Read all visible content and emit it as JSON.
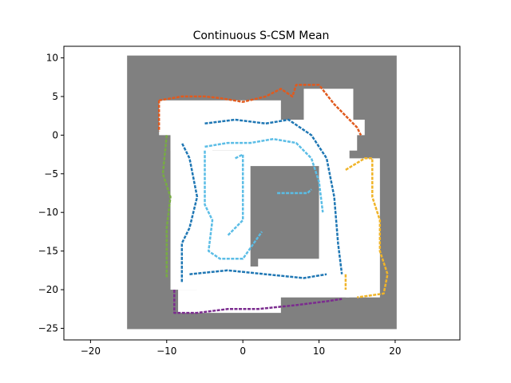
{
  "chart_data": {
    "type": "heatmap",
    "title": "Continuous S-CSM Mean",
    "xlabel": "",
    "ylabel": "",
    "xlim": [
      -23.5,
      28.5
    ],
    "ylim": [
      -26.5,
      11.5
    ],
    "xticks": [
      -20,
      -10,
      0,
      10,
      20
    ],
    "yticks": [
      10,
      5,
      0,
      -5,
      -10,
      -15,
      -20,
      -25
    ],
    "grid": false,
    "unknown_region": {
      "x": [
        -15.2,
        20.2
      ],
      "y": [
        -25.1,
        10.3
      ],
      "color": "#808080"
    },
    "free_regions": [
      {
        "x": [
          -11,
          5
        ],
        "y": [
          0,
          4.5
        ]
      },
      {
        "x": [
          -9.5,
          15
        ],
        "y": [
          -2,
          2
        ]
      },
      {
        "x": [
          -9.5,
          -4
        ],
        "y": [
          -20,
          1
        ]
      },
      {
        "x": [
          -6,
          14
        ],
        "y": [
          -21,
          -17
        ]
      },
      {
        "x": [
          -4,
          1
        ],
        "y": [
          -17,
          -2
        ]
      },
      {
        "x": [
          2,
          12
        ],
        "y": [
          -18,
          -16
        ]
      },
      {
        "x": [
          0,
          11
        ],
        "y": [
          -4,
          -1.5
        ]
      },
      {
        "x": [
          10,
          14
        ],
        "y": [
          -18,
          0
        ]
      },
      {
        "x": [
          13.5,
          18
        ],
        "y": [
          -21,
          -3
        ]
      },
      {
        "x": [
          -8.5,
          5
        ],
        "y": [
          -23,
          -20
        ]
      },
      {
        "x": [
          8,
          14.5
        ],
        "y": [
          2,
          6
        ]
      },
      {
        "x": [
          13,
          16
        ],
        "y": [
          0,
          2
        ]
      }
    ],
    "boundaries": [
      {
        "color": "#e05a1e",
        "points": [
          [
            -11,
            4.5
          ],
          [
            -8,
            5
          ],
          [
            -5,
            5
          ],
          [
            -3,
            4.8
          ],
          [
            0,
            4.3
          ],
          [
            3,
            5
          ],
          [
            5,
            6
          ],
          [
            6.5,
            5
          ],
          [
            7,
            6.5
          ],
          [
            10,
            6.5
          ],
          [
            12,
            4
          ],
          [
            14,
            2
          ],
          [
            15,
            1
          ],
          [
            15.5,
            0
          ]
        ]
      },
      {
        "color": "#e05a1e",
        "points": [
          [
            -11,
            4.5
          ],
          [
            -11,
            0.5
          ]
        ]
      },
      {
        "color": "#77ab43",
        "points": [
          [
            -10,
            0
          ],
          [
            -10.5,
            -5
          ],
          [
            -9.5,
            -8
          ],
          [
            -10,
            -12
          ],
          [
            -10,
            -18.5
          ]
        ]
      },
      {
        "color": "#1f77b4",
        "points": [
          [
            -8,
            -19
          ],
          [
            -8,
            -14
          ],
          [
            -7,
            -12
          ],
          [
            -6,
            -8
          ],
          [
            -7,
            -3
          ],
          [
            -8,
            -1
          ]
        ]
      },
      {
        "color": "#1f77b4",
        "points": [
          [
            -5,
            1.5
          ],
          [
            -1,
            2
          ],
          [
            3,
            1.5
          ],
          [
            6,
            2
          ],
          [
            9,
            0
          ],
          [
            11,
            -3
          ],
          [
            12,
            -8
          ],
          [
            12.5,
            -14
          ],
          [
            13,
            -18
          ]
        ]
      },
      {
        "color": "#1f77b4",
        "points": [
          [
            -7,
            -18
          ],
          [
            -2,
            -17.5
          ],
          [
            3,
            -18
          ],
          [
            8,
            -18.5
          ],
          [
            11,
            -18
          ]
        ]
      },
      {
        "color": "#5bbde6",
        "points": [
          [
            -5,
            -1.5
          ],
          [
            -2,
            -1
          ],
          [
            1,
            -1
          ],
          [
            4,
            -0.5
          ],
          [
            7,
            -1
          ],
          [
            9,
            -3
          ],
          [
            10,
            -6
          ],
          [
            10.5,
            -10
          ]
        ]
      },
      {
        "color": "#5bbde6",
        "points": [
          [
            -5,
            -2
          ],
          [
            -5,
            -9
          ],
          [
            -4,
            -11
          ],
          [
            -4.5,
            -15
          ],
          [
            -3,
            -16
          ],
          [
            0,
            -16
          ],
          [
            2.5,
            -12.5
          ]
        ]
      },
      {
        "color": "#5bbde6",
        "points": [
          [
            -1,
            -3
          ],
          [
            0,
            -2.5
          ],
          [
            0,
            -11
          ],
          [
            -2,
            -13
          ]
        ]
      },
      {
        "color": "#5bbde6",
        "points": [
          [
            4.5,
            -7.5
          ],
          [
            6,
            -7.5
          ],
          [
            8.5,
            -7.5
          ],
          [
            9,
            -7
          ]
        ]
      },
      {
        "color": "#7b2c8f",
        "points": [
          [
            -9,
            -20
          ],
          [
            -9,
            -23
          ],
          [
            -6,
            -23
          ],
          [
            -2,
            -22.5
          ],
          [
            2,
            -22.5
          ],
          [
            7,
            -22
          ],
          [
            11,
            -21.5
          ],
          [
            13,
            -21.2
          ]
        ]
      },
      {
        "color": "#f0b429",
        "points": [
          [
            13.5,
            -4.5
          ],
          [
            16,
            -3
          ],
          [
            17,
            -3
          ],
          [
            17,
            -8
          ],
          [
            18,
            -11
          ],
          [
            18,
            -15
          ],
          [
            19,
            -18
          ],
          [
            18.5,
            -20.5
          ],
          [
            15,
            -21
          ]
        ]
      },
      {
        "color": "#f0b429",
        "points": [
          [
            13.5,
            -18
          ],
          [
            13.5,
            -20
          ]
        ]
      }
    ]
  }
}
